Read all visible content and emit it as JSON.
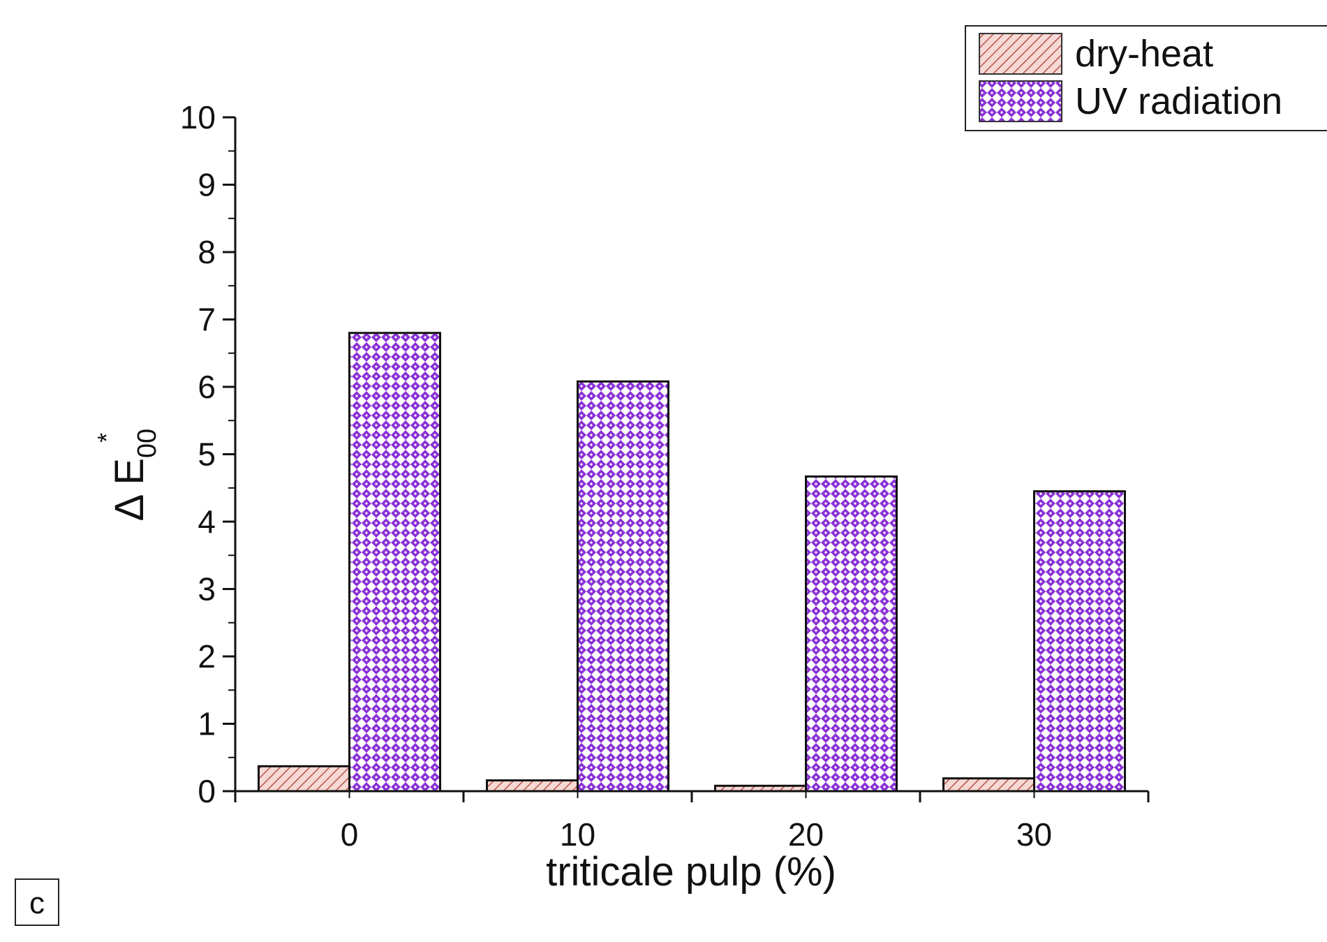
{
  "chart_data": {
    "type": "bar",
    "categories": [
      "0",
      "10",
      "20",
      "30"
    ],
    "series": [
      {
        "name": "dry-heat",
        "values": [
          0.37,
          0.16,
          0.08,
          0.19
        ],
        "color": "#f2c9c4",
        "stroke": "#b5534a",
        "pattern": "diagonal-hatch"
      },
      {
        "name": "UV radiation",
        "values": [
          6.8,
          6.08,
          4.67,
          4.45
        ],
        "color": "#8a32d6",
        "stroke": "#ffffff",
        "pattern": "crosshatch"
      }
    ],
    "xlabel": "triticale pulp (%)",
    "ylabel": {
      "base": "Δ E",
      "subscript": "00",
      "superscript": "*"
    },
    "ylim": [
      0,
      10
    ],
    "yticks": [
      "0",
      "1",
      "2",
      "3",
      "4",
      "5",
      "6",
      "7",
      "8",
      "9",
      "10"
    ],
    "grid": false,
    "legend_position": "top-right"
  },
  "panel_label": "c"
}
